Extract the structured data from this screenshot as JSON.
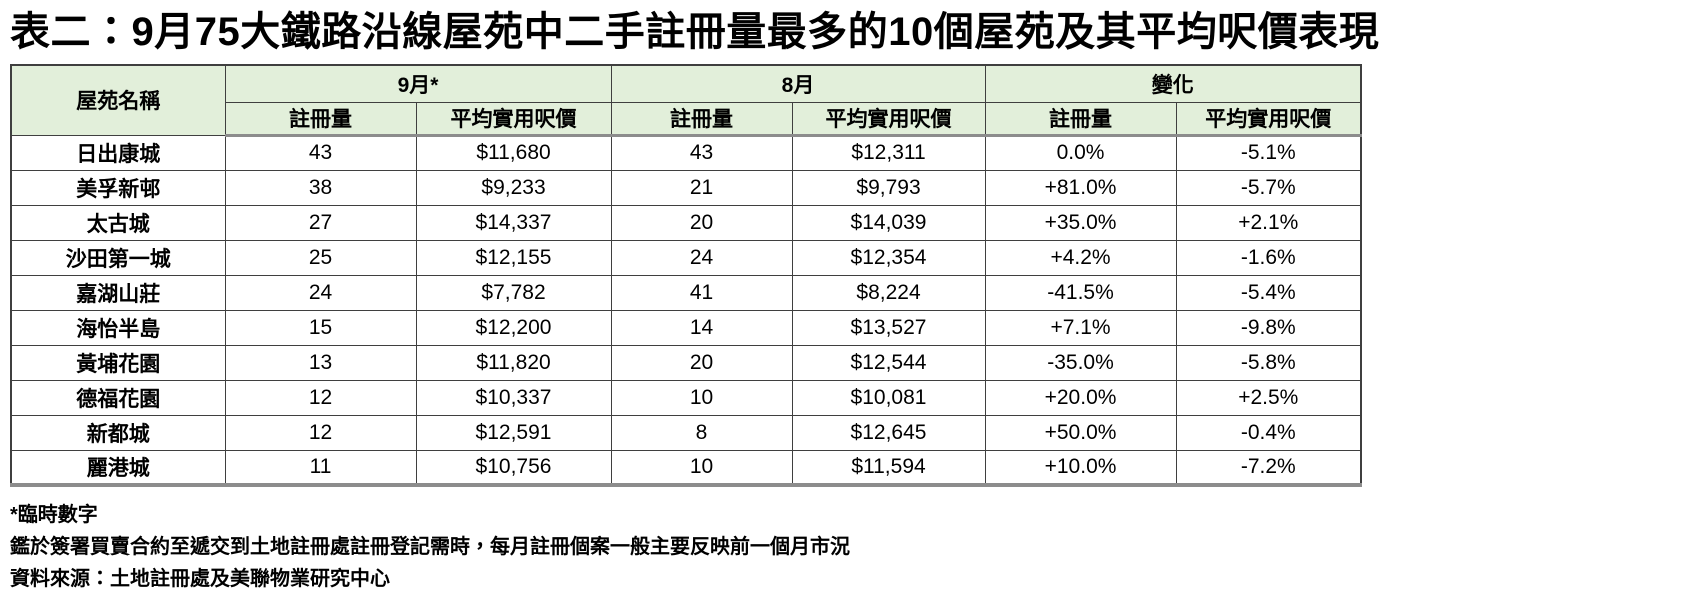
{
  "title": "表二：9月75大鐵路沿線屋苑中二手註冊量最多的10個屋苑及其平均呎價表現",
  "header": {
    "estate_col": "屋苑名稱",
    "groups": [
      "9月*",
      "8月",
      "變化"
    ],
    "sub_headers": [
      "註冊量",
      "平均實用呎價",
      "註冊量",
      "平均實用呎價",
      "註冊量",
      "平均實用呎價"
    ]
  },
  "chart_data": {
    "type": "table",
    "title": "表二：9月75大鐵路沿線屋苑中二手註冊量最多的10個屋苑及其平均呎價表現",
    "column_groups": [
      "9月*",
      "8月",
      "變化"
    ],
    "columns": [
      "屋苑名稱",
      "9月* 註冊量",
      "9月* 平均實用呎價",
      "8月 註冊量",
      "8月 平均實用呎價",
      "變化 註冊量",
      "變化 平均實用呎價"
    ],
    "rows": [
      [
        "日出康城",
        "43",
        "$11,680",
        "43",
        "$12,311",
        "0.0%",
        "-5.1%"
      ],
      [
        "美孚新邨",
        "38",
        "$9,233",
        "21",
        "$9,793",
        "+81.0%",
        "-5.7%"
      ],
      [
        "太古城",
        "27",
        "$14,337",
        "20",
        "$14,039",
        "+35.0%",
        "+2.1%"
      ],
      [
        "沙田第一城",
        "25",
        "$12,155",
        "24",
        "$12,354",
        "+4.2%",
        "-1.6%"
      ],
      [
        "嘉湖山莊",
        "24",
        "$7,782",
        "41",
        "$8,224",
        "-41.5%",
        "-5.4%"
      ],
      [
        "海怡半島",
        "15",
        "$12,200",
        "14",
        "$13,527",
        "+7.1%",
        "-9.8%"
      ],
      [
        "黃埔花園",
        "13",
        "$11,820",
        "20",
        "$12,544",
        "-35.0%",
        "-5.8%"
      ],
      [
        "德福花園",
        "12",
        "$10,337",
        "10",
        "$10,081",
        "+20.0%",
        "+2.5%"
      ],
      [
        "新都城",
        "12",
        "$12,591",
        "8",
        "$12,645",
        "+50.0%",
        "-0.4%"
      ],
      [
        "麗港城",
        "11",
        "$10,756",
        "10",
        "$11,594",
        "+10.0%",
        "-7.2%"
      ]
    ]
  },
  "footnotes": [
    "*臨時數字",
    "鑑於簽署買賣合約至遞交到土地註冊處註冊登記需時，每月註冊個案一般主要反映前一個月市況",
    "資料來源：土地註冊處及美聯物業研究中心"
  ],
  "colors": {
    "header_bg": "#e2efda",
    "border": "#3f3f3f",
    "thick_border": "#8c8c8c",
    "text": "#000000"
  }
}
